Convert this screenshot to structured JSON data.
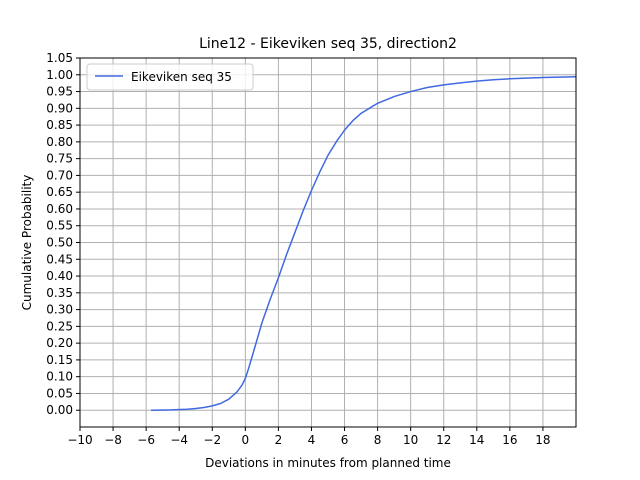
{
  "chart_data": {
    "type": "line",
    "title": "Line12 - Eikeviken seq 35, direction2",
    "xlabel": "Deviations in minutes from planned time",
    "ylabel": "Cumulative Probability",
    "xlim": [
      -10,
      20
    ],
    "ylim": [
      -0.05,
      1.05
    ],
    "xticks": [
      -10,
      -8,
      -6,
      -4,
      -2,
      0,
      2,
      4,
      6,
      8,
      10,
      12,
      14,
      16,
      18
    ],
    "xtick_labels": [
      "−10",
      "−8",
      "−6",
      "−4",
      "−2",
      "0",
      "2",
      "4",
      "6",
      "8",
      "10",
      "12",
      "14",
      "16",
      "18"
    ],
    "yticks": [
      0,
      0.05,
      0.1,
      0.15,
      0.2,
      0.25,
      0.3,
      0.35,
      0.4,
      0.45,
      0.5,
      0.55,
      0.6,
      0.65,
      0.7,
      0.75,
      0.8,
      0.85,
      0.9,
      0.95,
      1.0,
      1.05
    ],
    "ytick_labels": [
      "0.00",
      "0.05",
      "0.10",
      "0.15",
      "0.20",
      "0.25",
      "0.30",
      "0.35",
      "0.40",
      "0.45",
      "0.50",
      "0.55",
      "0.60",
      "0.65",
      "0.70",
      "0.75",
      "0.80",
      "0.85",
      "0.90",
      "0.95",
      "1.00",
      "1.05"
    ],
    "grid": true,
    "legend_position": "top-left",
    "series": [
      {
        "name": "Eikeviken seq 35",
        "color": "#4169e1",
        "x": [
          -5.7,
          -4.5,
          -3.5,
          -3.0,
          -2.5,
          -2.0,
          -1.5,
          -1.0,
          -0.5,
          -0.2,
          0.0,
          0.2,
          0.5,
          1.0,
          1.5,
          2.0,
          2.5,
          3.0,
          3.5,
          4.0,
          4.5,
          5.0,
          5.5,
          6.0,
          6.5,
          7.0,
          7.5,
          8.0,
          9.0,
          10.0,
          11.0,
          12.0,
          13.0,
          14.0,
          15.0,
          16.0,
          17.0,
          18.0,
          19.0,
          20.0
        ],
        "y": [
          0.0,
          0.001,
          0.003,
          0.005,
          0.008,
          0.013,
          0.02,
          0.033,
          0.055,
          0.075,
          0.095,
          0.125,
          0.175,
          0.26,
          0.33,
          0.395,
          0.465,
          0.53,
          0.595,
          0.655,
          0.71,
          0.76,
          0.8,
          0.835,
          0.863,
          0.885,
          0.9,
          0.915,
          0.935,
          0.95,
          0.962,
          0.97,
          0.976,
          0.981,
          0.985,
          0.988,
          0.99,
          0.992,
          0.993,
          0.994
        ]
      }
    ]
  }
}
